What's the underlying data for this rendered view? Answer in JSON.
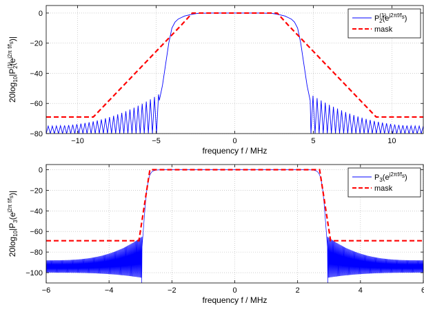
{
  "chart_data": [
    {
      "type": "line",
      "xlabel": "frequency f / MHz",
      "ylabel_parts": {
        "base": "20log",
        "sub10": "10",
        "bar1": "|P",
        "sup1": "(1)",
        "sub2": "2",
        "arg": "(e",
        "supj": "j2π f/f",
        "subs": "s",
        "close": ")|"
      },
      "xlim": [
        -12,
        12
      ],
      "ylim": [
        -80,
        5
      ],
      "xticks": [
        -10,
        -5,
        0,
        5,
        10
      ],
      "xtick_labels": [
        "−10",
        "−5",
        "0",
        "5",
        "10"
      ],
      "yticks": [
        0,
        -20,
        -40,
        -60,
        -80
      ],
      "ytick_labels": [
        "0",
        "−20",
        "−40",
        "−60",
        "−80"
      ],
      "grid": true,
      "legend_position": "top-right",
      "series": [
        {
          "name": "P2(1)(ej2πf/fs)",
          "legend_parts": {
            "p": "P",
            "sub": "2",
            "sup": "(1)",
            "arg": "(e",
            "supj": "j2πf/f",
            "subs": "s",
            "close": ")"
          },
          "style": "solid",
          "color": "#0000ff",
          "x": [
            -4.8,
            -4.6,
            -4.4,
            -4.2,
            -4.0,
            -3.8,
            -3.6,
            -3.4,
            -3.2,
            -3.0,
            -2.8,
            -2.6,
            -2.4,
            -2.0,
            -1.5,
            -1.0,
            0,
            1.0,
            1.5,
            2.0,
            2.4,
            2.6,
            2.8,
            3.0,
            3.2,
            3.4,
            3.6,
            3.8,
            4.0,
            4.2,
            4.4,
            4.6,
            4.8
          ],
          "y": [
            -58,
            -48,
            -34,
            -20,
            -10,
            -6,
            -4,
            -3,
            -2,
            -1.5,
            -1,
            -0.6,
            -0.3,
            -0.1,
            0,
            0,
            0,
            0,
            0,
            -0.1,
            -0.3,
            -0.6,
            -1,
            -1.5,
            -2,
            -3,
            -4,
            -6,
            -10,
            -20,
            -34,
            -48,
            -58
          ],
          "stopband": {
            "x_outer": [
              -12,
              -5
            ],
            "x_outer_right": [
              5,
              12
            ],
            "floor": -80,
            "peak_min": -75,
            "peak_max": -55
          }
        },
        {
          "name": "mask",
          "style": "dashed",
          "color": "#ff0000",
          "x": [
            -12,
            -9,
            -3.4,
            -2.7,
            2.7,
            3.4,
            9,
            12
          ],
          "y": [
            -69,
            -69,
            -8,
            0,
            0,
            -8,
            -69,
            -69
          ]
        }
      ]
    },
    {
      "type": "line",
      "xlabel": "frequency f / MHz",
      "ylabel_parts": {
        "base": "20log",
        "sub10": "10",
        "bar1": "|P",
        "sup1": "",
        "sub2": "3",
        "arg": "(e",
        "supj": "j2π f/f",
        "subs": "s",
        "close": ")|"
      },
      "xlim": [
        -6,
        6
      ],
      "ylim": [
        -110,
        5
      ],
      "xticks": [
        -6,
        -4,
        -2,
        0,
        2,
        4,
        6
      ],
      "xtick_labels": [
        "−6",
        "−4",
        "−2",
        "0",
        "2",
        "4",
        "6"
      ],
      "yticks": [
        0,
        -20,
        -40,
        -60,
        -80,
        -100
      ],
      "ytick_labels": [
        "0",
        "−20",
        "−40",
        "−60",
        "−80",
        "−100"
      ],
      "grid": true,
      "legend_position": "top-right",
      "series": [
        {
          "name": "P3(ej2πf/fs)",
          "legend_parts": {
            "p": "P",
            "sub": "3",
            "sup": "",
            "arg": "(e",
            "supj": "j2πf/f",
            "subs": "s",
            "close": ")"
          },
          "style": "solid",
          "color": "#0000ff",
          "x": [
            -2.95,
            -2.9,
            -2.85,
            -2.8,
            -2.75,
            -2.7,
            -2.65,
            -2.6,
            -2.5,
            -2.3,
            0,
            2.3,
            2.5,
            2.6,
            2.65,
            2.7,
            2.75,
            2.8,
            2.85,
            2.9,
            2.95
          ],
          "y": [
            -75,
            -55,
            -35,
            -20,
            -10,
            -5,
            -2.5,
            -1.2,
            -0.4,
            0,
            0,
            0,
            -0.4,
            -1.2,
            -2.5,
            -5,
            -10,
            -20,
            -35,
            -55,
            -75
          ],
          "stopband": {
            "edge": 2.95,
            "upper_near": -65,
            "lower_near": -105,
            "upper_far": -88,
            "lower_far": -100
          }
        },
        {
          "name": "mask",
          "style": "dashed",
          "color": "#ff0000",
          "x": [
            -6,
            -3.05,
            -2.7,
            2.7,
            3.05,
            6
          ],
          "y": [
            -69,
            -69,
            0,
            0,
            -69,
            -69
          ]
        }
      ]
    }
  ]
}
